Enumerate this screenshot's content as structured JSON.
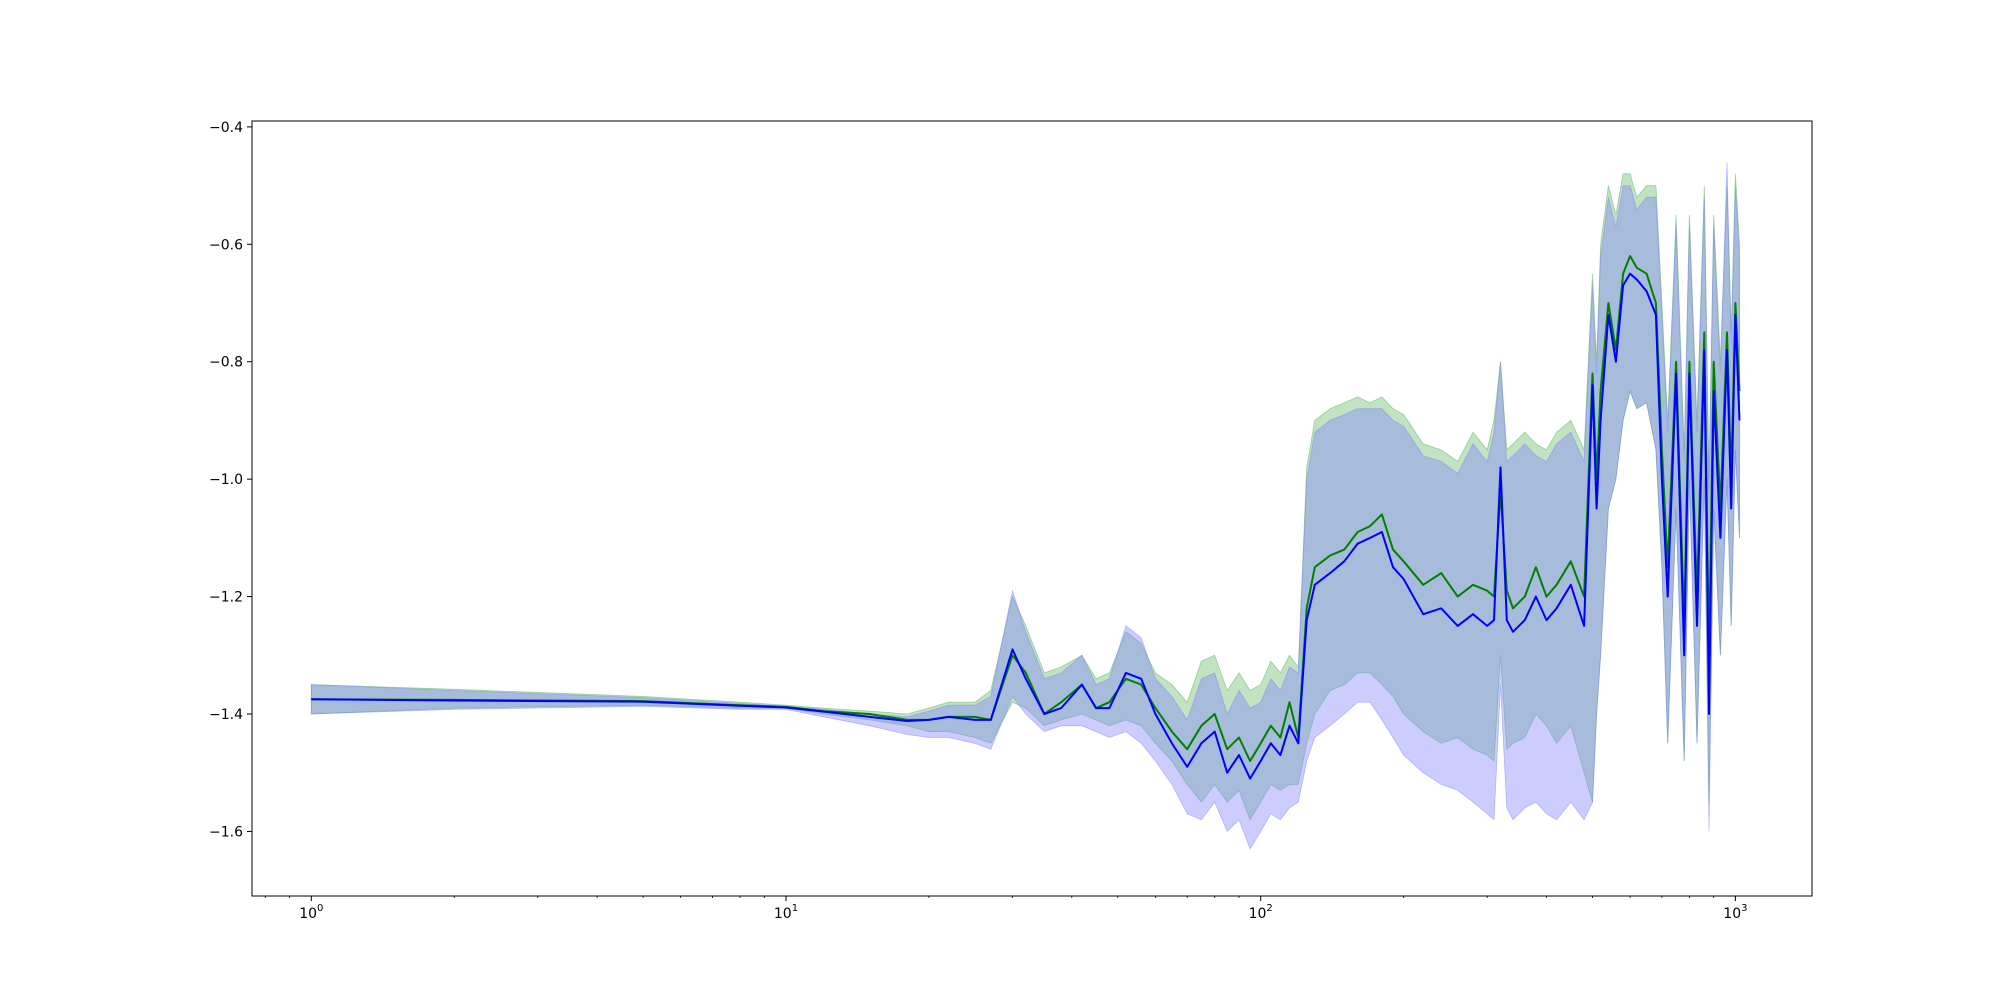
{
  "chart_data": {
    "type": "line",
    "title": "",
    "xlabel": "",
    "ylabel": "",
    "x_scale": "log",
    "xlim": [
      0.75,
      1450
    ],
    "ylim": [
      -1.71,
      -0.39
    ],
    "grid": false,
    "legend": "none",
    "x_ticks": [
      {
        "value": 1,
        "base": "10",
        "exp": "0"
      },
      {
        "value": 10,
        "base": "10",
        "exp": "1"
      },
      {
        "value": 100,
        "base": "10",
        "exp": "2"
      },
      {
        "value": 1000,
        "base": "10",
        "exp": "3"
      }
    ],
    "y_ticks": [
      {
        "value": -0.4,
        "label": "−0.4"
      },
      {
        "value": -0.6,
        "label": "−0.6"
      },
      {
        "value": -0.8,
        "label": "−0.8"
      },
      {
        "value": -1.0,
        "label": "−1.0"
      },
      {
        "value": -1.2,
        "label": "−1.2"
      },
      {
        "value": -1.4,
        "label": "−1.4"
      },
      {
        "value": -1.6,
        "label": "−1.6"
      }
    ],
    "x": [
      1,
      2,
      5,
      8,
      10,
      12,
      15,
      18,
      20,
      22,
      25,
      27,
      30,
      32,
      35,
      38,
      42,
      45,
      48,
      52,
      56,
      60,
      65,
      70,
      75,
      80,
      85,
      90,
      95,
      100,
      105,
      110,
      115,
      120,
      125,
      130,
      140,
      150,
      160,
      170,
      180,
      190,
      200,
      220,
      240,
      260,
      280,
      300,
      310,
      320,
      330,
      340,
      360,
      380,
      400,
      420,
      450,
      480,
      500,
      510,
      520,
      540,
      560,
      580,
      600,
      620,
      650,
      680,
      700,
      720,
      750,
      780,
      800,
      830,
      860,
      880,
      900,
      930,
      960,
      980,
      1000,
      1020
    ],
    "series": [
      {
        "color": "#008000",
        "band_color": "#4caf50",
        "values": [
          -1.375,
          -1.376,
          -1.378,
          -1.385,
          -1.388,
          -1.395,
          -1.4,
          -1.41,
          -1.41,
          -1.405,
          -1.405,
          -1.41,
          -1.3,
          -1.33,
          -1.4,
          -1.38,
          -1.35,
          -1.39,
          -1.38,
          -1.34,
          -1.35,
          -1.39,
          -1.43,
          -1.46,
          -1.42,
          -1.4,
          -1.46,
          -1.44,
          -1.48,
          -1.45,
          -1.42,
          -1.44,
          -1.38,
          -1.44,
          -1.22,
          -1.15,
          -1.13,
          -1.12,
          -1.09,
          -1.08,
          -1.06,
          -1.12,
          -1.14,
          -1.18,
          -1.16,
          -1.2,
          -1.18,
          -1.19,
          -1.2,
          -1.02,
          -1.19,
          -1.22,
          -1.2,
          -1.15,
          -1.2,
          -1.18,
          -1.14,
          -1.2,
          -0.82,
          -1.0,
          -0.85,
          -0.7,
          -0.78,
          -0.65,
          -0.62,
          -0.64,
          -0.65,
          -0.7,
          -0.95,
          -1.15,
          -0.8,
          -1.25,
          -0.8,
          -1.2,
          -0.75,
          -1.3,
          -0.8,
          -1.05,
          -0.75,
          -1.0,
          -0.7,
          -0.85
        ],
        "lower": [
          -1.4,
          -1.39,
          -1.385,
          -1.39,
          -1.39,
          -1.4,
          -1.41,
          -1.42,
          -1.43,
          -1.43,
          -1.44,
          -1.45,
          -1.38,
          -1.39,
          -1.42,
          -1.41,
          -1.4,
          -1.41,
          -1.42,
          -1.41,
          -1.42,
          -1.45,
          -1.48,
          -1.52,
          -1.55,
          -1.52,
          -1.55,
          -1.53,
          -1.58,
          -1.55,
          -1.52,
          -1.53,
          -1.52,
          -1.52,
          -1.45,
          -1.4,
          -1.36,
          -1.35,
          -1.33,
          -1.33,
          -1.35,
          -1.37,
          -1.4,
          -1.43,
          -1.45,
          -1.44,
          -1.46,
          -1.47,
          -1.48,
          -1.3,
          -1.46,
          -1.45,
          -1.44,
          -1.4,
          -1.42,
          -1.45,
          -1.42,
          -1.5,
          -1.55,
          -1.4,
          -1.3,
          -1.05,
          -1.0,
          -0.9,
          -0.85,
          -0.88,
          -0.87,
          -0.95,
          -1.15,
          -1.45,
          -1.05,
          -1.48,
          -1.0,
          -1.45,
          -1.0,
          -1.55,
          -1.05,
          -1.3,
          -1.0,
          -1.25,
          -0.95,
          -1.1
        ],
        "upper": [
          -1.35,
          -1.358,
          -1.37,
          -1.38,
          -1.385,
          -1.39,
          -1.395,
          -1.4,
          -1.39,
          -1.38,
          -1.38,
          -1.36,
          -1.2,
          -1.25,
          -1.33,
          -1.32,
          -1.3,
          -1.34,
          -1.33,
          -1.26,
          -1.28,
          -1.33,
          -1.35,
          -1.38,
          -1.31,
          -1.3,
          -1.36,
          -1.33,
          -1.36,
          -1.35,
          -1.31,
          -1.33,
          -1.3,
          -1.32,
          -0.98,
          -0.9,
          -0.88,
          -0.87,
          -0.86,
          -0.87,
          -0.86,
          -0.88,
          -0.89,
          -0.94,
          -0.95,
          -0.97,
          -0.92,
          -0.95,
          -0.9,
          -0.8,
          -0.95,
          -0.94,
          -0.92,
          -0.94,
          -0.95,
          -0.92,
          -0.9,
          -0.95,
          -0.65,
          -0.8,
          -0.6,
          -0.5,
          -0.55,
          -0.48,
          -0.48,
          -0.52,
          -0.5,
          -0.5,
          -0.7,
          -0.9,
          -0.55,
          -0.95,
          -0.55,
          -0.9,
          -0.5,
          -1.0,
          -0.55,
          -0.8,
          -0.5,
          -0.75,
          -0.48,
          -0.6
        ]
      },
      {
        "color": "#0000ff",
        "band_color": "#8080ff",
        "values": [
          -1.375,
          -1.377,
          -1.379,
          -1.386,
          -1.389,
          -1.396,
          -1.405,
          -1.412,
          -1.41,
          -1.405,
          -1.41,
          -1.41,
          -1.29,
          -1.34,
          -1.4,
          -1.39,
          -1.35,
          -1.39,
          -1.39,
          -1.33,
          -1.34,
          -1.4,
          -1.45,
          -1.49,
          -1.45,
          -1.43,
          -1.5,
          -1.47,
          -1.51,
          -1.48,
          -1.45,
          -1.47,
          -1.42,
          -1.45,
          -1.24,
          -1.18,
          -1.16,
          -1.14,
          -1.11,
          -1.1,
          -1.09,
          -1.15,
          -1.17,
          -1.23,
          -1.22,
          -1.25,
          -1.23,
          -1.25,
          -1.24,
          -0.98,
          -1.24,
          -1.26,
          -1.24,
          -1.2,
          -1.24,
          -1.22,
          -1.18,
          -1.25,
          -0.84,
          -1.05,
          -0.9,
          -0.72,
          -0.8,
          -0.67,
          -0.65,
          -0.66,
          -0.68,
          -0.72,
          -1.0,
          -1.2,
          -0.82,
          -1.3,
          -0.82,
          -1.25,
          -0.78,
          -1.4,
          -0.85,
          -1.1,
          -0.78,
          -1.05,
          -0.72,
          -0.9
        ],
        "lower": [
          -1.4,
          -1.392,
          -1.387,
          -1.392,
          -1.392,
          -1.405,
          -1.42,
          -1.435,
          -1.44,
          -1.44,
          -1.45,
          -1.46,
          -1.37,
          -1.4,
          -1.43,
          -1.42,
          -1.42,
          -1.43,
          -1.44,
          -1.43,
          -1.45,
          -1.48,
          -1.52,
          -1.57,
          -1.58,
          -1.55,
          -1.6,
          -1.58,
          -1.63,
          -1.6,
          -1.57,
          -1.58,
          -1.56,
          -1.55,
          -1.48,
          -1.44,
          -1.42,
          -1.4,
          -1.38,
          -1.38,
          -1.41,
          -1.44,
          -1.47,
          -1.5,
          -1.52,
          -1.53,
          -1.55,
          -1.57,
          -1.58,
          -1.35,
          -1.56,
          -1.58,
          -1.56,
          -1.55,
          -1.57,
          -1.58,
          -1.55,
          -1.58,
          -1.55,
          -1.4,
          -1.3,
          -1.05,
          -1.0,
          -0.9,
          -0.85,
          -0.88,
          -0.87,
          -0.95,
          -1.15,
          -1.45,
          -1.05,
          -1.48,
          -1.0,
          -1.45,
          -1.0,
          -1.6,
          -1.05,
          -1.3,
          -1.0,
          -1.25,
          -0.95,
          -1.1
        ],
        "upper": [
          -1.35,
          -1.36,
          -1.372,
          -1.382,
          -1.387,
          -1.392,
          -1.4,
          -1.405,
          -1.395,
          -1.385,
          -1.385,
          -1.37,
          -1.19,
          -1.26,
          -1.34,
          -1.33,
          -1.3,
          -1.35,
          -1.34,
          -1.25,
          -1.27,
          -1.34,
          -1.37,
          -1.41,
          -1.34,
          -1.33,
          -1.4,
          -1.36,
          -1.39,
          -1.38,
          -1.34,
          -1.36,
          -1.32,
          -1.33,
          -1.0,
          -0.92,
          -0.9,
          -0.89,
          -0.88,
          -0.88,
          -0.88,
          -0.9,
          -0.91,
          -0.96,
          -0.97,
          -0.99,
          -0.94,
          -0.97,
          -0.92,
          -0.8,
          -0.97,
          -0.96,
          -0.94,
          -0.96,
          -0.97,
          -0.94,
          -0.92,
          -0.97,
          -0.67,
          -0.82,
          -0.62,
          -0.52,
          -0.57,
          -0.5,
          -0.5,
          -0.54,
          -0.52,
          -0.52,
          -0.72,
          -0.92,
          -0.57,
          -0.97,
          -0.57,
          -0.92,
          -0.52,
          -1.02,
          -0.57,
          -0.82,
          -0.46,
          -0.77,
          -0.5,
          -0.62
        ]
      }
    ]
  }
}
